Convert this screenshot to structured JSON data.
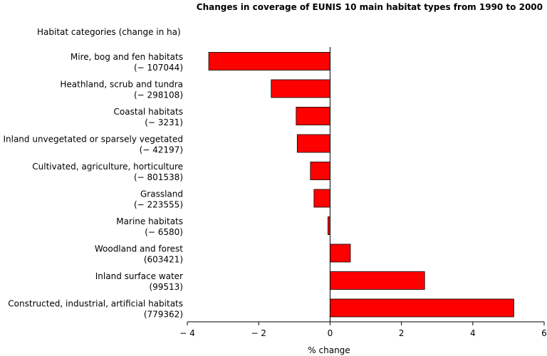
{
  "chart_data": {
    "type": "bar",
    "orientation": "horizontal",
    "title": "Changes in coverage of EUNIS 10 main habitat types from 1990 to 2000",
    "subtitle": "Habitat categories (change in ha)",
    "xlabel": "% change",
    "xlim": [
      -4,
      6
    ],
    "xticks": [
      "− 4",
      "− 2",
      "0",
      "2",
      "4",
      "6"
    ],
    "xtick_values": [
      -4,
      -2,
      0,
      2,
      4,
      6
    ],
    "bar_color": "#ff0000",
    "bar_edge_color": "#000000",
    "grid": false,
    "categories": [
      {
        "name": "Mire, bog and fen habitats",
        "change": "(− 107044)",
        "value": -3.4
      },
      {
        "name": "Heathland, scrub and tundra",
        "change": "(− 298108)",
        "value": -1.65
      },
      {
        "name": "Coastal habitats",
        "change": "(− 3231)",
        "value": -0.95
      },
      {
        "name": "Inland unvegetated or sparsely vegetated",
        "change": "(− 42197)",
        "value": -0.92
      },
      {
        "name": "Cultivated, agriculture, horticulture",
        "change": "(− 801538)",
        "value": -0.55
      },
      {
        "name": "Grassland",
        "change": "(− 223555)",
        "value": -0.45
      },
      {
        "name": "Marine habitats",
        "change": "(− 6580)",
        "value": -0.06
      },
      {
        "name": "Woodland and forest",
        "change": "(603421)",
        "value": 0.57
      },
      {
        "name": "Inland surface water",
        "change": "(99513)",
        "value": 2.65
      },
      {
        "name": "Constructed, industrial, artificial habitats",
        "change": "(779362)",
        "value": 5.15
      }
    ]
  }
}
